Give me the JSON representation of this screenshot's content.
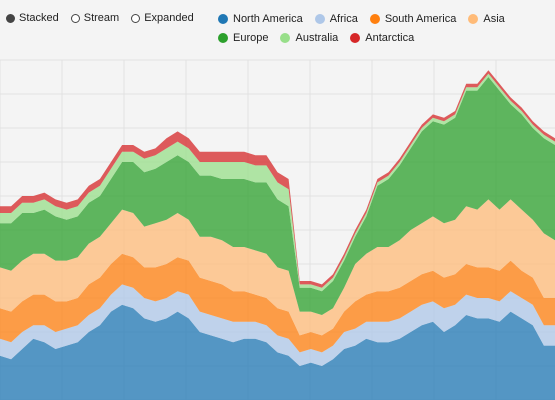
{
  "controls": {
    "modes": [
      {
        "label": "Stacked",
        "selected": true
      },
      {
        "label": "Stream",
        "selected": false
      },
      {
        "label": "Expanded",
        "selected": false
      }
    ]
  },
  "chart_data": {
    "type": "area",
    "title": "",
    "xlabel": "",
    "ylabel": "",
    "stacked": true,
    "grid": true,
    "legend_position": "top-right",
    "x": [
      0,
      1,
      2,
      3,
      4,
      5,
      6,
      7,
      8,
      9,
      10,
      11,
      12,
      13,
      14,
      15,
      16,
      17,
      18,
      19,
      20,
      21,
      22,
      23,
      24,
      25,
      26,
      27,
      28,
      29,
      30,
      31,
      32,
      33,
      34,
      35,
      36,
      37,
      38,
      39,
      40,
      41,
      42,
      43,
      44,
      45,
      46,
      47,
      48,
      49,
      50
    ],
    "ylim": [
      0,
      100
    ],
    "series": [
      {
        "name": "North America",
        "color": "#1f77b4",
        "values": [
          13,
          12,
          15,
          18,
          17,
          15,
          16,
          17,
          20,
          22,
          26,
          28,
          27,
          24,
          23,
          24,
          26,
          24,
          20,
          19,
          18,
          17,
          18,
          18,
          17,
          14,
          13,
          10,
          11,
          10,
          12,
          15,
          16,
          18,
          17,
          17,
          18,
          20,
          22,
          23,
          20,
          22,
          25,
          24,
          24,
          23,
          26,
          24,
          22,
          16,
          16
        ]
      },
      {
        "name": "Africa",
        "color": "#aec7e8",
        "values": [
          5,
          5,
          5,
          4,
          5,
          5,
          5,
          5,
          5,
          5,
          5,
          6,
          6,
          6,
          6,
          6,
          6,
          7,
          6,
          6,
          6,
          6,
          5,
          5,
          5,
          5,
          5,
          4,
          4,
          4,
          4,
          5,
          5,
          5,
          6,
          6,
          6,
          6,
          6,
          6,
          7,
          6,
          6,
          6,
          6,
          6,
          6,
          6,
          6,
          6,
          6
        ]
      },
      {
        "name": "South America",
        "color": "#ff7f0e",
        "values": [
          9,
          9,
          9,
          9,
          9,
          9,
          8,
          8,
          9,
          9,
          9,
          9,
          9,
          9,
          10,
          10,
          10,
          10,
          10,
          10,
          10,
          9,
          9,
          8,
          8,
          8,
          8,
          5,
          5,
          5,
          5,
          6,
          8,
          8,
          9,
          9,
          9,
          9,
          9,
          9,
          9,
          9,
          9,
          9,
          9,
          9,
          9,
          8,
          8,
          8,
          8
        ]
      },
      {
        "name": "Asia",
        "color": "#ffbb78",
        "values": [
          12,
          12,
          12,
          12,
          12,
          12,
          12,
          12,
          12,
          12,
          12,
          13,
          13,
          12,
          13,
          13,
          13,
          12,
          12,
          13,
          13,
          13,
          13,
          13,
          13,
          12,
          12,
          7,
          6,
          6,
          6,
          7,
          11,
          12,
          13,
          13,
          14,
          15,
          15,
          16,
          16,
          16,
          17,
          17,
          20,
          18,
          18,
          18,
          17,
          19,
          17
        ]
      },
      {
        "name": "Europe",
        "color": "#2ca02c",
        "values": [
          13,
          14,
          14,
          12,
          13,
          13,
          12,
          12,
          12,
          12,
          13,
          14,
          15,
          16,
          16,
          17,
          17,
          17,
          18,
          18,
          18,
          20,
          20,
          20,
          21,
          20,
          19,
          7,
          7,
          7,
          8,
          8,
          8,
          11,
          18,
          20,
          22,
          24,
          27,
          28,
          29,
          30,
          34,
          35,
          36,
          35,
          28,
          28,
          27,
          28,
          28
        ]
      },
      {
        "name": "Australia",
        "color": "#98df8a",
        "values": [
          3,
          3,
          3,
          3,
          3,
          3,
          3,
          3,
          3,
          3,
          3,
          3,
          3,
          4,
          4,
          4,
          4,
          4,
          4,
          4,
          5,
          5,
          5,
          5,
          5,
          5,
          5,
          1,
          1,
          1,
          1,
          1,
          1,
          1,
          1,
          1,
          1,
          1,
          1,
          1,
          1,
          1,
          1,
          1,
          1,
          1,
          1,
          1,
          1,
          1,
          1
        ]
      },
      {
        "name": "Antarctica",
        "color": "#d62728",
        "values": [
          2,
          2,
          2,
          2,
          2,
          2,
          2,
          2,
          2,
          2,
          2,
          2,
          2,
          2,
          2,
          3,
          3,
          3,
          3,
          3,
          3,
          3,
          3,
          3,
          3,
          3,
          3,
          1,
          1,
          1,
          1,
          1,
          1,
          1,
          1,
          1,
          1,
          1,
          1,
          1,
          1,
          1,
          1,
          1,
          1,
          1,
          1,
          1,
          1,
          1,
          1
        ]
      }
    ]
  }
}
